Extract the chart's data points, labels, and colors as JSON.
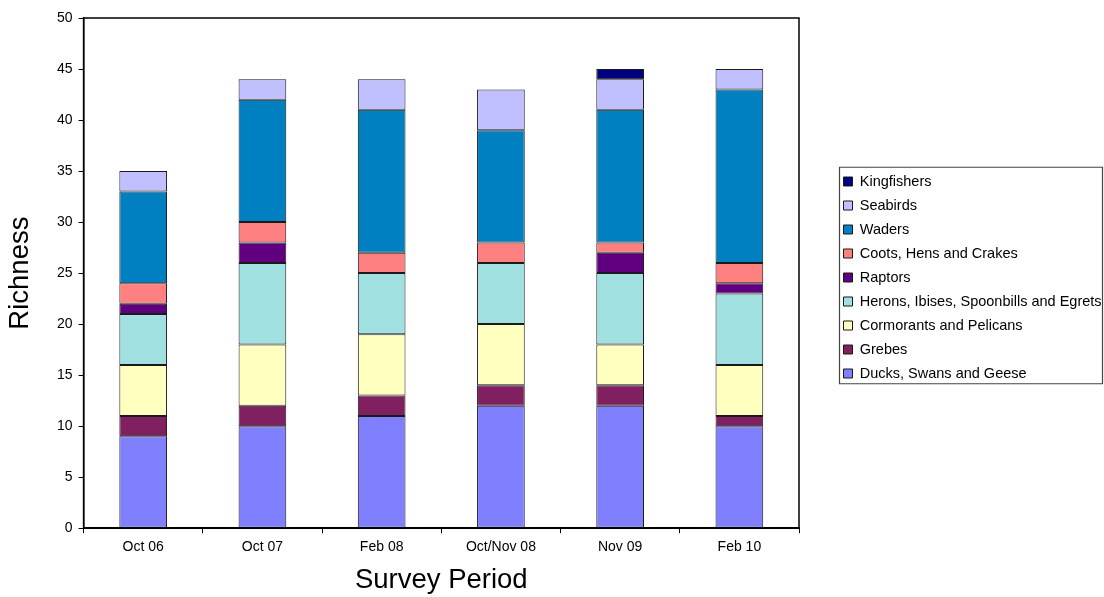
{
  "chart_data": {
    "type": "bar",
    "stacked": true,
    "xlabel": "Survey Period",
    "ylabel": "Richness",
    "legend": "right",
    "grid": false,
    "categories": [
      "Oct 06",
      "Oct 07",
      "Feb 08",
      "Oct/Nov 08",
      "Nov 09",
      "Feb 10"
    ],
    "ylim": [
      0,
      50
    ],
    "yticks": [
      0,
      5,
      10,
      15,
      20,
      25,
      30,
      35,
      40,
      45,
      50
    ],
    "series": [
      {
        "name": "Ducks, Swans and Geese",
        "color": "#8080ff",
        "values": [
          9,
          10,
          11,
          12,
          12,
          10
        ]
      },
      {
        "name": "Grebes",
        "color": "#802060",
        "values": [
          2,
          2,
          2,
          2,
          2,
          1
        ]
      },
      {
        "name": "Cormorants and Pelicans",
        "color": "#ffffc0",
        "values": [
          5,
          6,
          6,
          6,
          4,
          5
        ]
      },
      {
        "name": "Herons, Ibises, Spoonbills and Egrets",
        "color": "#a0e0e0",
        "values": [
          5,
          8,
          6,
          6,
          7,
          7
        ]
      },
      {
        "name": "Raptors",
        "color": "#600080",
        "values": [
          1,
          2,
          null,
          null,
          2,
          1
        ]
      },
      {
        "name": "Coots, Hens and Crakes",
        "color": "#ff8080",
        "values": [
          2,
          2,
          2,
          2,
          1,
          2
        ]
      },
      {
        "name": "Waders",
        "color": "#0080c0",
        "values": [
          9,
          12,
          14,
          11,
          13,
          17
        ]
      },
      {
        "name": "Seabirds",
        "color": "#c0c0ff",
        "values": [
          2,
          2,
          3,
          4,
          3,
          2
        ]
      },
      {
        "name": "Kingfishers",
        "color": "#000080",
        "values": [
          null,
          null,
          null,
          null,
          1,
          null
        ]
      }
    ]
  }
}
